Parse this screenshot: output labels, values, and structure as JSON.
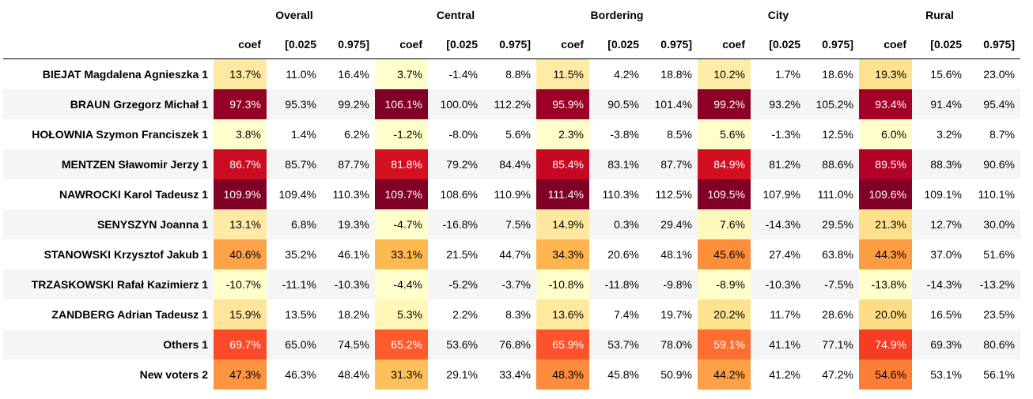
{
  "groups": [
    "Overall",
    "Central",
    "Bordering",
    "City",
    "Rural"
  ],
  "subcolumns": [
    "coef",
    "[0.025",
    "0.975]"
  ],
  "rows": [
    {
      "label": "BIEJAT Magdalena Agnieszka 1",
      "values": [
        "13.7%",
        "11.0%",
        "16.4%",
        "3.7%",
        "-1.4%",
        "8.8%",
        "11.5%",
        "4.2%",
        "18.8%",
        "10.2%",
        "1.7%",
        "18.6%",
        "19.3%",
        "15.6%",
        "23.0%"
      ],
      "coef_colors": [
        "#fee9a3",
        "#ffffcc",
        "#feeba6",
        "#feeda8",
        "#fee290"
      ],
      "coef_text": [
        "#000",
        "#000",
        "#000",
        "#000",
        "#000"
      ]
    },
    {
      "label": "BRAUN Grzegorz Michał 1",
      "values": [
        "97.3%",
        "95.3%",
        "99.2%",
        "106.1%",
        "100.0%",
        "112.2%",
        "95.9%",
        "90.5%",
        "101.4%",
        "99.2%",
        "93.2%",
        "105.2%",
        "93.4%",
        "91.4%",
        "95.4%"
      ],
      "coef_colors": [
        "#940026",
        "#800026",
        "#9b0026",
        "#8b0026",
        "#a20026"
      ],
      "coef_text": [
        "#fff",
        "#fff",
        "#fff",
        "#fff",
        "#fff"
      ]
    },
    {
      "label": "HOŁOWNIA Szymon Franciszek 1",
      "values": [
        "3.8%",
        "1.4%",
        "6.2%",
        "-1.2%",
        "-8.0%",
        "5.6%",
        "2.3%",
        "-3.8%",
        "8.5%",
        "5.6%",
        "-1.3%",
        "12.5%",
        "6.0%",
        "3.2%",
        "8.7%"
      ],
      "coef_colors": [
        "#ffffcc",
        "#ffffcc",
        "#ffffcc",
        "#ffffcc",
        "#ffffcc"
      ],
      "coef_text": [
        "#000",
        "#000",
        "#000",
        "#000",
        "#000"
      ]
    },
    {
      "label": "MENTZEN Sławomir Jerzy 1",
      "values": [
        "86.7%",
        "85.7%",
        "87.7%",
        "81.8%",
        "79.2%",
        "84.4%",
        "85.4%",
        "83.1%",
        "87.7%",
        "84.9%",
        "81.2%",
        "88.6%",
        "89.5%",
        "88.3%",
        "90.6%"
      ],
      "coef_colors": [
        "#ca0b22",
        "#d31121",
        "#c70823",
        "#d10f21",
        "#b30026"
      ],
      "coef_text": [
        "#fff",
        "#fff",
        "#fff",
        "#fff",
        "#fff"
      ]
    },
    {
      "label": "NAWROCKI Karol Tadeusz 1",
      "values": [
        "109.9%",
        "109.4%",
        "110.3%",
        "109.7%",
        "108.6%",
        "110.9%",
        "111.4%",
        "110.3%",
        "112.5%",
        "109.5%",
        "107.9%",
        "111.0%",
        "109.6%",
        "109.1%",
        "110.1%"
      ],
      "coef_colors": [
        "#800026",
        "#800026",
        "#800026",
        "#800026",
        "#800026"
      ],
      "coef_text": [
        "#fff",
        "#fff",
        "#fff",
        "#fff",
        "#fff"
      ]
    },
    {
      "label": "SENYSZYN Joanna 1",
      "values": [
        "13.1%",
        "6.8%",
        "19.3%",
        "-4.7%",
        "-16.8%",
        "7.5%",
        "14.9%",
        "0.3%",
        "29.4%",
        "7.6%",
        "-14.3%",
        "29.5%",
        "21.3%",
        "12.7%",
        "30.0%"
      ],
      "coef_colors": [
        "#feeaa5",
        "#ffffcc",
        "#fee89f",
        "#fff8bd",
        "#fedf8b"
      ],
      "coef_text": [
        "#000",
        "#000",
        "#000",
        "#000",
        "#000"
      ]
    },
    {
      "label": "STANOWSKI Krzysztof Jakub 1",
      "values": [
        "40.6%",
        "35.2%",
        "46.1%",
        "33.1%",
        "21.5%",
        "44.7%",
        "34.3%",
        "20.6%",
        "48.1%",
        "45.6%",
        "27.4%",
        "63.8%",
        "44.3%",
        "37.0%",
        "51.6%"
      ],
      "coef_colors": [
        "#fda34a",
        "#feb950",
        "#feb54f",
        "#fd8e3c",
        "#fd9d43"
      ],
      "coef_text": [
        "#000",
        "#000",
        "#000",
        "#000",
        "#000"
      ]
    },
    {
      "label": "TRZASKOWSKI Rafał Kazimierz 1",
      "values": [
        "-10.7%",
        "-11.1%",
        "-10.3%",
        "-4.4%",
        "-5.2%",
        "-3.7%",
        "-10.8%",
        "-11.8%",
        "-9.8%",
        "-8.9%",
        "-10.3%",
        "-7.5%",
        "-13.8%",
        "-14.3%",
        "-13.2%"
      ],
      "coef_colors": [
        "#ffffcc",
        "#ffffcc",
        "#ffffcc",
        "#ffffcc",
        "#ffffcc"
      ],
      "coef_text": [
        "#000",
        "#000",
        "#000",
        "#000",
        "#000"
      ]
    },
    {
      "label": "ZANDBERG Adrian Tadeusz 1",
      "values": [
        "15.9%",
        "13.5%",
        "18.2%",
        "5.3%",
        "2.2%",
        "8.3%",
        "13.6%",
        "7.4%",
        "19.7%",
        "20.2%",
        "11.7%",
        "28.6%",
        "20.0%",
        "16.5%",
        "23.5%"
      ],
      "coef_colors": [
        "#fee59a",
        "#fff6b7",
        "#fee99f",
        "#fee38f",
        "#fedd86"
      ],
      "coef_text": [
        "#000",
        "#000",
        "#000",
        "#000",
        "#000"
      ]
    },
    {
      "label": "Others 1",
      "values": [
        "69.7%",
        "65.0%",
        "74.5%",
        "65.2%",
        "53.6%",
        "76.8%",
        "65.9%",
        "53.7%",
        "78.0%",
        "59.1%",
        "41.1%",
        "77.1%",
        "74.9%",
        "69.3%",
        "80.6%"
      ],
      "coef_colors": [
        "#fb4a2a",
        "#fc5b2e",
        "#fc532c",
        "#fd6e32",
        "#f43d25"
      ],
      "coef_text": [
        "#fff",
        "#fff",
        "#fff",
        "#fff",
        "#fff"
      ]
    },
    {
      "label": "New voters 2",
      "values": [
        "47.3%",
        "46.3%",
        "48.4%",
        "31.3%",
        "29.1%",
        "33.4%",
        "48.3%",
        "45.8%",
        "50.9%",
        "44.2%",
        "41.2%",
        "47.2%",
        "54.6%",
        "53.1%",
        "56.1%"
      ],
      "coef_colors": [
        "#fd9540",
        "#fec05a",
        "#fd8d3c",
        "#fea046",
        "#fd7e38"
      ],
      "coef_text": [
        "#000",
        "#000",
        "#000",
        "#000",
        "#000"
      ]
    }
  ]
}
